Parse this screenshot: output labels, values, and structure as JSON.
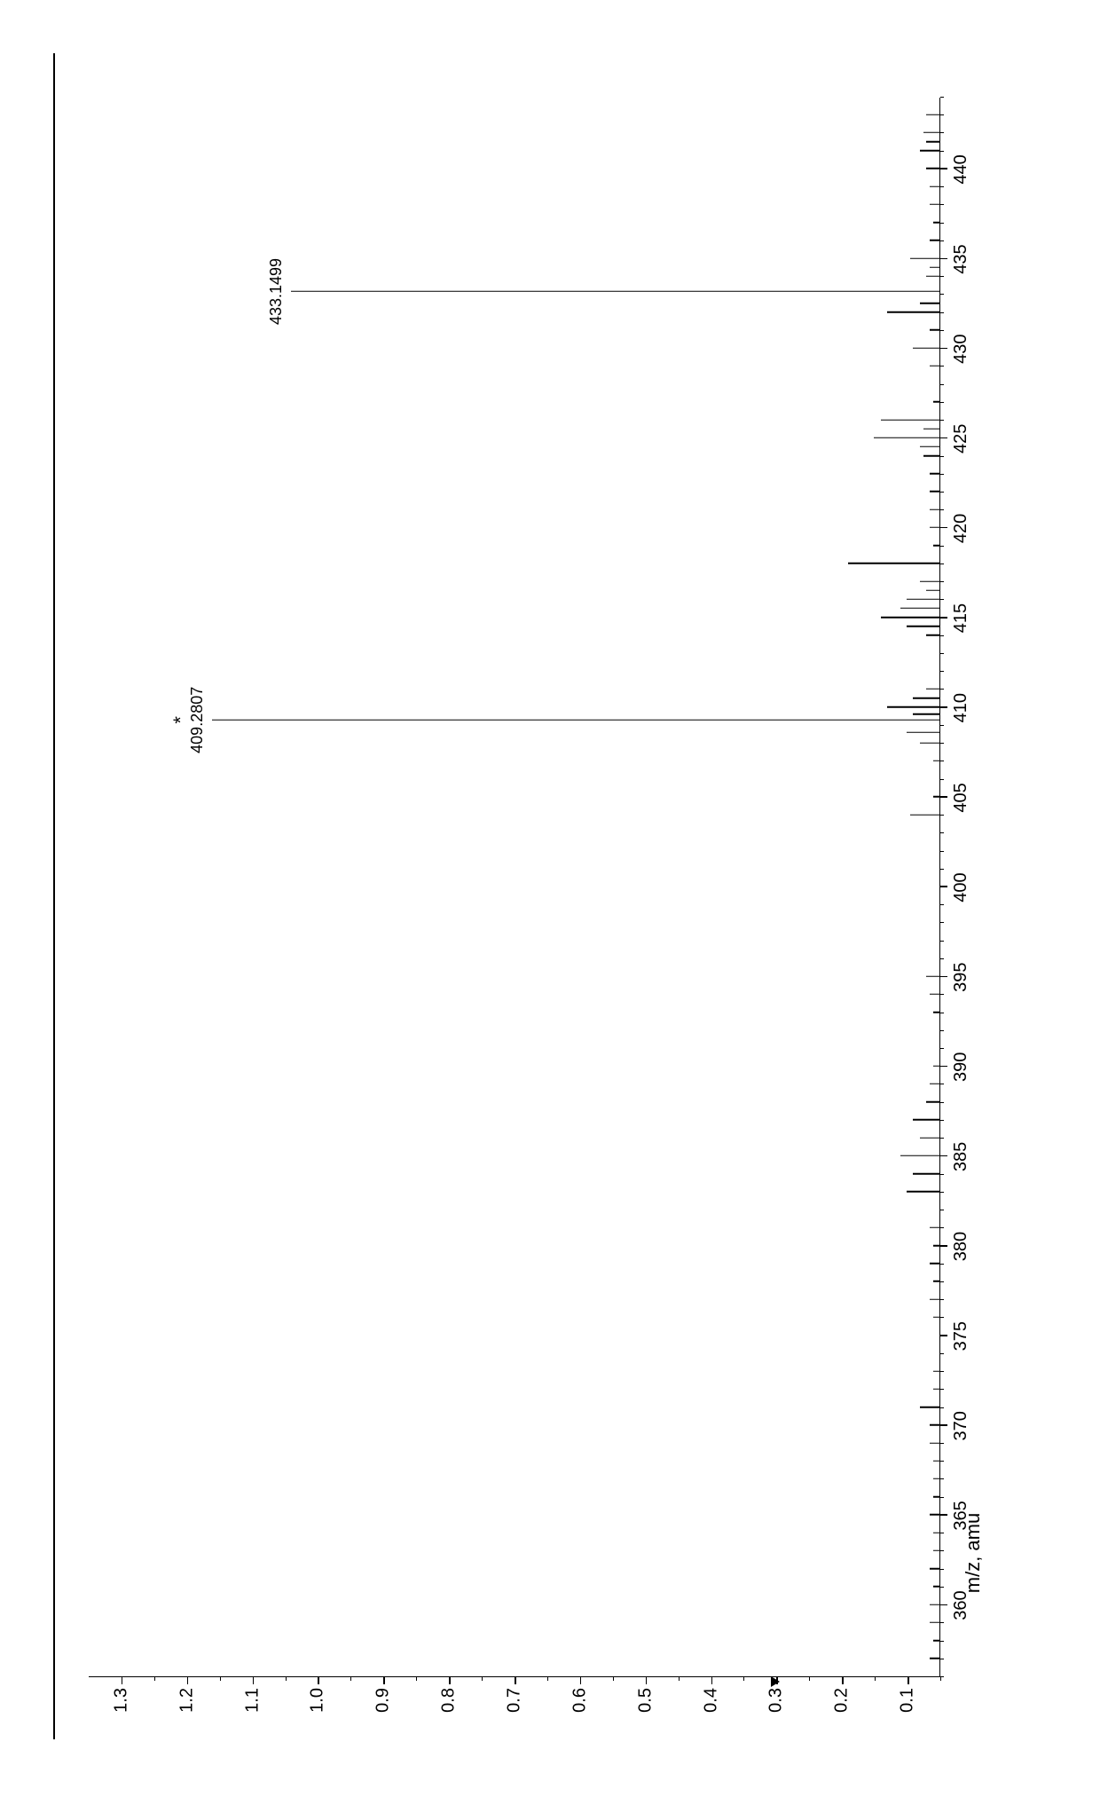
{
  "spectrum": {
    "type": "mass-spectrum",
    "xlabel": "m/z, amu",
    "xlim": [
      356,
      444
    ],
    "xtick_start": 360,
    "xtick_step": 5,
    "xtick_end": 440,
    "ylim": [
      0.05,
      1.35
    ],
    "ytick_start": 0.1,
    "ytick_step": 0.1,
    "ytick_end": 1.3,
    "label_fontsize": 20,
    "axis_title_fontsize": 22,
    "background_color": "#ffffff",
    "line_color": "#000000",
    "arrow_marker_y": 0.3,
    "peaks": [
      {
        "mz": 357,
        "intensity": 0.065
      },
      {
        "mz": 358,
        "intensity": 0.06
      },
      {
        "mz": 359,
        "intensity": 0.065
      },
      {
        "mz": 360,
        "intensity": 0.065
      },
      {
        "mz": 361,
        "intensity": 0.06
      },
      {
        "mz": 362,
        "intensity": 0.065
      },
      {
        "mz": 363,
        "intensity": 0.06
      },
      {
        "mz": 364,
        "intensity": 0.06
      },
      {
        "mz": 365,
        "intensity": 0.065
      },
      {
        "mz": 366,
        "intensity": 0.06
      },
      {
        "mz": 367,
        "intensity": 0.06
      },
      {
        "mz": 368,
        "intensity": 0.06
      },
      {
        "mz": 369,
        "intensity": 0.065
      },
      {
        "mz": 370,
        "intensity": 0.065
      },
      {
        "mz": 371,
        "intensity": 0.08
      },
      {
        "mz": 372,
        "intensity": 0.06
      },
      {
        "mz": 373,
        "intensity": 0.06
      },
      {
        "mz": 376,
        "intensity": 0.06
      },
      {
        "mz": 377,
        "intensity": 0.065
      },
      {
        "mz": 378,
        "intensity": 0.06
      },
      {
        "mz": 379,
        "intensity": 0.065
      },
      {
        "mz": 380,
        "intensity": 0.06
      },
      {
        "mz": 381,
        "intensity": 0.065
      },
      {
        "mz": 383,
        "intensity": 0.1
      },
      {
        "mz": 384,
        "intensity": 0.09
      },
      {
        "mz": 385,
        "intensity": 0.11
      },
      {
        "mz": 386,
        "intensity": 0.08
      },
      {
        "mz": 387,
        "intensity": 0.09
      },
      {
        "mz": 388,
        "intensity": 0.07
      },
      {
        "mz": 389,
        "intensity": 0.065
      },
      {
        "mz": 390,
        "intensity": 0.06
      },
      {
        "mz": 393,
        "intensity": 0.06
      },
      {
        "mz": 394,
        "intensity": 0.065
      },
      {
        "mz": 395,
        "intensity": 0.07
      },
      {
        "mz": 404,
        "intensity": 0.095
      },
      {
        "mz": 405,
        "intensity": 0.06
      },
      {
        "mz": 407,
        "intensity": 0.06
      },
      {
        "mz": 408,
        "intensity": 0.08
      },
      {
        "mz": 408.6,
        "intensity": 0.1
      },
      {
        "mz": 409.28,
        "intensity": 1.16,
        "label": "409.2807",
        "asterisk": true
      },
      {
        "mz": 409.6,
        "intensity": 0.09
      },
      {
        "mz": 410,
        "intensity": 0.13
      },
      {
        "mz": 410.5,
        "intensity": 0.09
      },
      {
        "mz": 411,
        "intensity": 0.07
      },
      {
        "mz": 414,
        "intensity": 0.07
      },
      {
        "mz": 414.5,
        "intensity": 0.1
      },
      {
        "mz": 415,
        "intensity": 0.14
      },
      {
        "mz": 415.5,
        "intensity": 0.11
      },
      {
        "mz": 416,
        "intensity": 0.1
      },
      {
        "mz": 416.5,
        "intensity": 0.07
      },
      {
        "mz": 417,
        "intensity": 0.08
      },
      {
        "mz": 418,
        "intensity": 0.19
      },
      {
        "mz": 419,
        "intensity": 0.06
      },
      {
        "mz": 420,
        "intensity": 0.065
      },
      {
        "mz": 421,
        "intensity": 0.065
      },
      {
        "mz": 422,
        "intensity": 0.065
      },
      {
        "mz": 423,
        "intensity": 0.065
      },
      {
        "mz": 424,
        "intensity": 0.075
      },
      {
        "mz": 424.5,
        "intensity": 0.08
      },
      {
        "mz": 425,
        "intensity": 0.15
      },
      {
        "mz": 425.5,
        "intensity": 0.075
      },
      {
        "mz": 426,
        "intensity": 0.14
      },
      {
        "mz": 427,
        "intensity": 0.06
      },
      {
        "mz": 429,
        "intensity": 0.065
      },
      {
        "mz": 430,
        "intensity": 0.09
      },
      {
        "mz": 431,
        "intensity": 0.065
      },
      {
        "mz": 432,
        "intensity": 0.13
      },
      {
        "mz": 432.5,
        "intensity": 0.08
      },
      {
        "mz": 433.15,
        "intensity": 1.04,
        "label": "433.1499"
      },
      {
        "mz": 434,
        "intensity": 0.07
      },
      {
        "mz": 434.5,
        "intensity": 0.065
      },
      {
        "mz": 435,
        "intensity": 0.095
      },
      {
        "mz": 436,
        "intensity": 0.065
      },
      {
        "mz": 437,
        "intensity": 0.06
      },
      {
        "mz": 438,
        "intensity": 0.065
      },
      {
        "mz": 439,
        "intensity": 0.065
      },
      {
        "mz": 440,
        "intensity": 0.07
      },
      {
        "mz": 441,
        "intensity": 0.08
      },
      {
        "mz": 441.5,
        "intensity": 0.07
      },
      {
        "mz": 442,
        "intensity": 0.075
      },
      {
        "mz": 443,
        "intensity": 0.07
      }
    ]
  }
}
